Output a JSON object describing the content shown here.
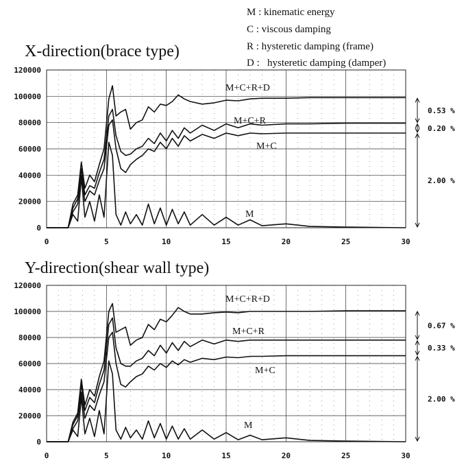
{
  "legend": [
    {
      "key": "M",
      "text": "M : kinematic energy"
    },
    {
      "key": "C",
      "text": "C : viscous damping"
    },
    {
      "key": "R",
      "text": "R : hysteretic damping (frame)"
    },
    {
      "key": "D",
      "text": "D :   hysteretic damping (damper)"
    }
  ],
  "chart_data": [
    {
      "type": "line",
      "title": "X-direction(brace type)",
      "xlim": [
        0,
        30
      ],
      "ylim": [
        0,
        120000
      ],
      "xticks": [
        "0",
        "5",
        "10",
        "15",
        "20",
        "25",
        "30"
      ],
      "yticks": [
        "0",
        "20000",
        "40000",
        "60000",
        "80000",
        "100000",
        "120000"
      ],
      "series": [
        {
          "name": "M+C+R+D",
          "x": [
            0,
            1.8,
            2.2,
            2.6,
            2.9,
            3.2,
            3.6,
            4.0,
            4.4,
            4.8,
            5.2,
            5.5,
            5.8,
            6.2,
            6.6,
            7.0,
            7.5,
            8.0,
            8.5,
            9.0,
            9.5,
            10.0,
            10.5,
            11.0,
            11.5,
            12.0,
            13.0,
            14.0,
            15.0,
            16.0,
            17.0,
            18.0,
            20.0,
            22.0,
            25.0,
            30.0
          ],
          "values": [
            0,
            0,
            18000,
            25000,
            50000,
            30000,
            40000,
            35000,
            48000,
            60000,
            98000,
            108000,
            85000,
            88000,
            90000,
            75000,
            80000,
            82000,
            92000,
            88000,
            94000,
            93000,
            96000,
            101000,
            98000,
            96000,
            94000,
            95000,
            97000,
            96500,
            98000,
            98500,
            98500,
            99000,
            99000,
            99000
          ]
        },
        {
          "name": "M+C+R",
          "x": [
            0,
            1.8,
            2.2,
            2.6,
            2.9,
            3.2,
            3.6,
            4.0,
            4.4,
            4.8,
            5.2,
            5.5,
            5.8,
            6.2,
            6.6,
            7.0,
            7.5,
            8.0,
            8.5,
            9.0,
            9.5,
            10.0,
            10.5,
            11.0,
            11.5,
            12.0,
            13.0,
            14.0,
            15.0,
            16.0,
            17.0,
            18.0,
            20.0,
            22.0,
            25.0,
            30.0
          ],
          "values": [
            0,
            0,
            15000,
            22000,
            45000,
            25000,
            32000,
            30000,
            42000,
            52000,
            85000,
            90000,
            70000,
            58000,
            55000,
            56000,
            60000,
            62000,
            68000,
            64000,
            72000,
            66000,
            74000,
            68000,
            76000,
            72000,
            78000,
            74000,
            79000,
            76000,
            79000,
            78000,
            79000,
            79000,
            79500,
            79500
          ]
        },
        {
          "name": "M+C",
          "x": [
            0,
            1.8,
            2.2,
            2.6,
            2.9,
            3.2,
            3.6,
            4.0,
            4.4,
            4.8,
            5.2,
            5.5,
            5.8,
            6.2,
            6.6,
            7.0,
            7.5,
            8.0,
            8.5,
            9.0,
            9.5,
            10.0,
            10.5,
            11.0,
            11.5,
            12.0,
            13.0,
            14.0,
            15.0,
            16.0,
            17.0,
            18.0,
            20.0,
            22.0,
            25.0,
            30.0
          ],
          "values": [
            0,
            0,
            12000,
            18000,
            40000,
            20000,
            28000,
            25000,
            36000,
            45000,
            78000,
            82000,
            60000,
            45000,
            42000,
            48000,
            52000,
            55000,
            60000,
            58000,
            65000,
            60000,
            68000,
            62000,
            70000,
            66000,
            71000,
            68000,
            72000,
            70000,
            72000,
            71500,
            72000,
            72000,
            72000,
            72000
          ]
        },
        {
          "name": "M",
          "x": [
            0,
            1.8,
            2.2,
            2.6,
            2.9,
            3.2,
            3.6,
            4.0,
            4.4,
            4.8,
            5.2,
            5.5,
            5.8,
            6.2,
            6.6,
            7.0,
            7.5,
            8.0,
            8.5,
            9.0,
            9.5,
            10.0,
            10.5,
            11.0,
            11.5,
            12.0,
            13.0,
            14.0,
            15.0,
            16.0,
            17.0,
            18.0,
            20.0,
            22.0,
            25.0,
            30.0
          ],
          "values": [
            0,
            0,
            10000,
            5000,
            38000,
            8000,
            20000,
            5000,
            25000,
            8000,
            65000,
            55000,
            10000,
            2000,
            12000,
            3000,
            10000,
            2000,
            18000,
            3000,
            15000,
            2000,
            14000,
            3000,
            12000,
            2000,
            10000,
            2000,
            8000,
            2000,
            6000,
            1500,
            3000,
            1000,
            500,
            0
          ]
        }
      ],
      "annotations": [
        "0.53 %",
        "0.20 %",
        "2.00 %"
      ]
    },
    {
      "type": "line",
      "title": "Y-direction(shear wall type)",
      "xlim": [
        0,
        30
      ],
      "ylim": [
        0,
        120000
      ],
      "xticks": [
        "0",
        "5",
        "10",
        "15",
        "20",
        "25",
        "30"
      ],
      "yticks": [
        "0",
        "20000",
        "40000",
        "60000",
        "80000",
        "100000",
        "120000"
      ],
      "series": [
        {
          "name": "M+C+R+D",
          "x": [
            0,
            1.8,
            2.2,
            2.6,
            2.9,
            3.2,
            3.6,
            4.0,
            4.4,
            4.8,
            5.2,
            5.5,
            5.8,
            6.2,
            6.6,
            7.0,
            7.5,
            8.0,
            8.5,
            9.0,
            9.5,
            10.0,
            10.5,
            11.0,
            11.5,
            12.0,
            13.0,
            14.0,
            15.0,
            16.0,
            17.0,
            18.0,
            20.0,
            22.0,
            25.0,
            30.0
          ],
          "values": [
            0,
            0,
            15000,
            22000,
            48000,
            28000,
            40000,
            35000,
            50000,
            62000,
            100000,
            106000,
            84000,
            86000,
            88000,
            74000,
            78000,
            80000,
            90000,
            86000,
            94000,
            92000,
            97000,
            103000,
            100000,
            98000,
            98000,
            99000,
            99500,
            99000,
            100000,
            100000,
            100000,
            100000,
            100500,
            100500
          ]
        },
        {
          "name": "M+C+R",
          "x": [
            0,
            1.8,
            2.2,
            2.6,
            2.9,
            3.2,
            3.6,
            4.0,
            4.4,
            4.8,
            5.2,
            5.5,
            5.8,
            6.2,
            6.6,
            7.0,
            7.5,
            8.0,
            8.5,
            9.0,
            9.5,
            10.0,
            10.5,
            11.0,
            11.5,
            12.0,
            13.0,
            14.0,
            15.0,
            16.0,
            17.0,
            18.0,
            20.0,
            22.0,
            25.0,
            30.0
          ],
          "values": [
            0,
            0,
            13000,
            20000,
            44000,
            24000,
            34000,
            30000,
            44000,
            55000,
            90000,
            95000,
            72000,
            60000,
            58000,
            58000,
            62000,
            64000,
            70000,
            66000,
            74000,
            68000,
            76000,
            70000,
            77000,
            73000,
            78000,
            75000,
            78000,
            77000,
            78000,
            78000,
            78000,
            78000,
            78000,
            78000
          ]
        },
        {
          "name": "M+C",
          "x": [
            0,
            1.8,
            2.2,
            2.6,
            2.9,
            3.2,
            3.6,
            4.0,
            4.4,
            4.8,
            5.2,
            5.5,
            5.8,
            6.2,
            6.6,
            7.0,
            7.5,
            8.0,
            8.5,
            9.0,
            9.5,
            10.0,
            10.5,
            11.0,
            11.5,
            12.0,
            13.0,
            14.0,
            15.0,
            16.0,
            17.0,
            18.0,
            20.0,
            22.0,
            25.0,
            30.0
          ],
          "values": [
            0,
            0,
            10000,
            16000,
            38000,
            18000,
            28000,
            24000,
            36000,
            46000,
            80000,
            84000,
            60000,
            44000,
            42000,
            46000,
            50000,
            52000,
            58000,
            55000,
            60000,
            57000,
            62000,
            59000,
            63000,
            61000,
            64000,
            63000,
            65000,
            64500,
            65500,
            65500,
            66000,
            66000,
            66000,
            66000
          ]
        },
        {
          "name": "M",
          "x": [
            0,
            1.8,
            2.2,
            2.6,
            2.9,
            3.2,
            3.6,
            4.0,
            4.4,
            4.8,
            5.2,
            5.5,
            5.8,
            6.2,
            6.6,
            7.0,
            7.5,
            8.0,
            8.5,
            9.0,
            9.5,
            10.0,
            10.5,
            11.0,
            11.5,
            12.0,
            13.0,
            14.0,
            15.0,
            16.0,
            17.0,
            18.0,
            20.0,
            22.0,
            25.0,
            30.0
          ],
          "values": [
            0,
            0,
            9000,
            4000,
            34000,
            6000,
            18000,
            4000,
            24000,
            6000,
            62000,
            52000,
            9000,
            2000,
            11000,
            3000,
            9000,
            2000,
            16000,
            3000,
            14000,
            2000,
            12000,
            2000,
            10000,
            2000,
            9000,
            2000,
            7000,
            1500,
            5000,
            1500,
            3000,
            1000,
            500,
            0
          ]
        }
      ],
      "annotations": [
        "0.67 %",
        "0.33 %",
        "2.00 %"
      ]
    }
  ]
}
